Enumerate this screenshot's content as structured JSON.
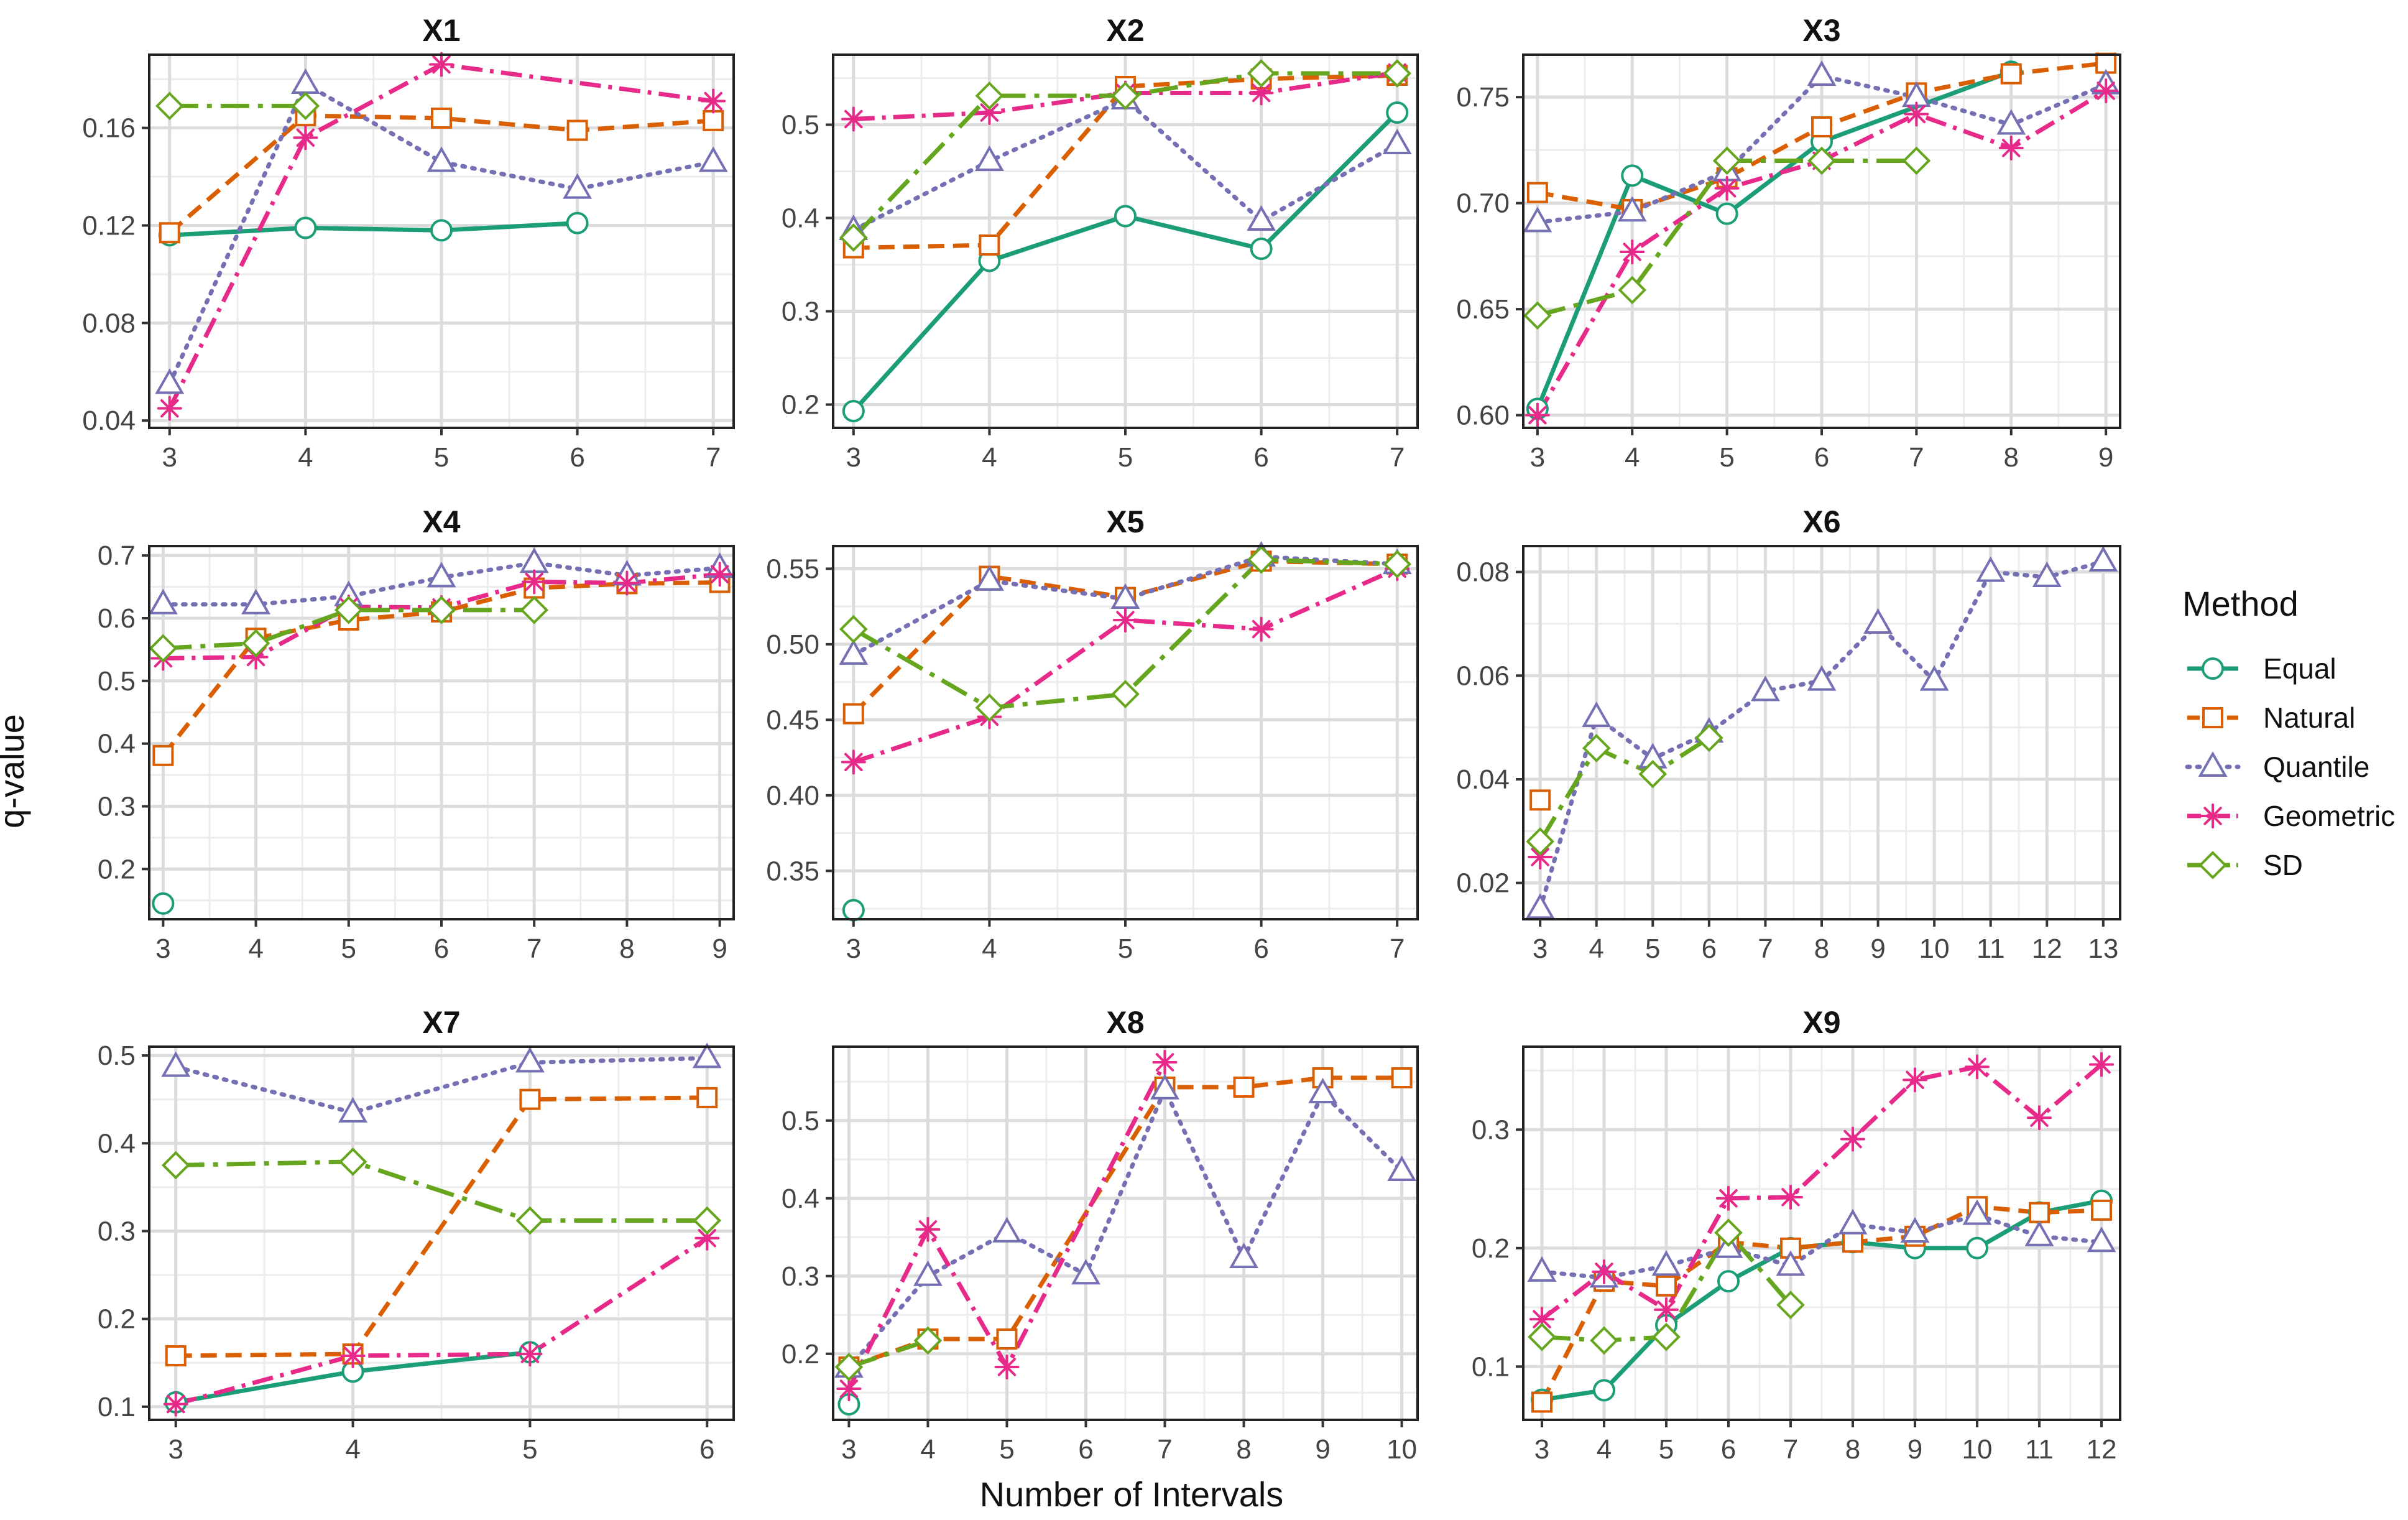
{
  "chart_data": {
    "type": "line",
    "xlabel": "Number of Intervals",
    "ylabel": "q-value",
    "legend": {
      "title": "Method",
      "placement": "right",
      "entries": [
        {
          "name": "Equal",
          "color": "#1b9e77",
          "dash": "solid",
          "marker": "circle"
        },
        {
          "name": "Natural",
          "color": "#d95f02",
          "dash": "dashed",
          "marker": "square"
        },
        {
          "name": "Quantile",
          "color": "#7570b3",
          "dash": "dotted",
          "marker": "triangle"
        },
        {
          "name": "Geometric",
          "color": "#e7298a",
          "dash": "dashdot",
          "marker": "star"
        },
        {
          "name": "SD",
          "color": "#66a61e",
          "dash": "longdashdot",
          "marker": "diamond"
        }
      ]
    },
    "panels": [
      {
        "title": "X1",
        "xlim": [
          2.85,
          7.15
        ],
        "ylim": [
          0.037,
          0.19
        ],
        "xticks": [
          3,
          4,
          5,
          6,
          7
        ],
        "yticks": [
          0.04,
          0.08,
          0.12,
          0.16
        ],
        "ytick_labels": [
          "0.04",
          "0.08",
          "0.12",
          "0.16"
        ],
        "series": [
          {
            "name": "Equal",
            "x": [
              3,
              4,
              5,
              6
            ],
            "y": [
              0.116,
              0.119,
              0.118,
              0.121
            ]
          },
          {
            "name": "Natural",
            "x": [
              3,
              4,
              5,
              6,
              7
            ],
            "y": [
              0.117,
              0.165,
              0.164,
              0.159,
              0.163
            ]
          },
          {
            "name": "Quantile",
            "x": [
              3,
              4,
              5,
              6,
              7
            ],
            "y": [
              0.055,
              0.178,
              0.146,
              0.135,
              0.146
            ]
          },
          {
            "name": "Geometric",
            "x": [
              3,
              4,
              5,
              7
            ],
            "y": [
              0.045,
              0.156,
              0.186,
              0.171
            ]
          },
          {
            "name": "SD",
            "x": [
              3,
              4
            ],
            "y": [
              0.169,
              0.169
            ]
          }
        ]
      },
      {
        "title": "X2",
        "xlim": [
          2.85,
          7.15
        ],
        "ylim": [
          0.175,
          0.575
        ],
        "xticks": [
          3,
          4,
          5,
          6,
          7
        ],
        "yticks": [
          0.2,
          0.3,
          0.4,
          0.5
        ],
        "ytick_labels": [
          "0.2",
          "0.3",
          "0.4",
          "0.5"
        ],
        "series": [
          {
            "name": "Equal",
            "x": [
              3,
              4,
              5,
              6,
              7
            ],
            "y": [
              0.193,
              0.354,
              0.402,
              0.367,
              0.513
            ]
          },
          {
            "name": "Natural",
            "x": [
              3,
              4,
              5,
              6,
              7
            ],
            "y": [
              0.368,
              0.371,
              0.541,
              0.549,
              0.553
            ]
          },
          {
            "name": "Quantile",
            "x": [
              3,
              4,
              5,
              6,
              7
            ],
            "y": [
              0.387,
              0.461,
              0.527,
              0.397,
              0.479
            ]
          },
          {
            "name": "Geometric",
            "x": [
              3,
              4,
              5,
              6,
              7
            ],
            "y": [
              0.506,
              0.513,
              0.534,
              0.534,
              0.556
            ]
          },
          {
            "name": "SD",
            "x": [
              3,
              4,
              5,
              6,
              7
            ],
            "y": [
              0.379,
              0.531,
              0.531,
              0.555,
              0.555
            ]
          }
        ]
      },
      {
        "title": "X3",
        "xlim": [
          2.85,
          9.15
        ],
        "ylim": [
          0.594,
          0.77
        ],
        "xticks": [
          3,
          4,
          5,
          6,
          7,
          8,
          9
        ],
        "yticks": [
          0.6,
          0.65,
          0.7,
          0.75
        ],
        "ytick_labels": [
          "0.60",
          "0.65",
          "0.70",
          "0.75"
        ],
        "series": [
          {
            "name": "Equal",
            "x": [
              3,
              4,
              5,
              6,
              8
            ],
            "y": [
              0.603,
              0.713,
              0.695,
              0.729,
              0.762
            ]
          },
          {
            "name": "Natural",
            "x": [
              3,
              4,
              5,
              6,
              7,
              8,
              9
            ],
            "y": [
              0.705,
              0.697,
              0.712,
              0.736,
              0.752,
              0.761,
              0.766
            ]
          },
          {
            "name": "Quantile",
            "x": [
              3,
              4,
              5,
              6,
              7,
              8,
              9
            ],
            "y": [
              0.691,
              0.696,
              0.715,
              0.76,
              0.75,
              0.737,
              0.756
            ]
          },
          {
            "name": "Geometric",
            "x": [
              3,
              4,
              5,
              6,
              7,
              8,
              9
            ],
            "y": [
              0.6,
              0.677,
              0.707,
              0.72,
              0.742,
              0.726,
              0.753
            ]
          },
          {
            "name": "SD",
            "x": [
              3,
              4,
              5,
              6,
              7
            ],
            "y": [
              0.647,
              0.659,
              0.72,
              0.72,
              0.72
            ]
          }
        ]
      },
      {
        "title": "X4",
        "xlim": [
          2.85,
          9.15
        ],
        "ylim": [
          0.12,
          0.715
        ],
        "xticks": [
          3,
          4,
          5,
          6,
          7,
          8,
          9
        ],
        "yticks": [
          0.2,
          0.3,
          0.4,
          0.5,
          0.6,
          0.7
        ],
        "ytick_labels": [
          "0.2",
          "0.3",
          "0.4",
          "0.5",
          "0.6",
          "0.7"
        ],
        "series": [
          {
            "name": "Equal",
            "x": [
              3
            ],
            "y": [
              0.145
            ]
          },
          {
            "name": "Natural",
            "x": [
              3,
              4,
              5,
              6,
              7,
              8,
              9
            ],
            "y": [
              0.381,
              0.568,
              0.597,
              0.61,
              0.648,
              0.655,
              0.657
            ]
          },
          {
            "name": "Quantile",
            "x": [
              3,
              4,
              5,
              6,
              7,
              8,
              9
            ],
            "y": [
              0.622,
              0.622,
              0.635,
              0.665,
              0.688,
              0.668,
              0.68
            ]
          },
          {
            "name": "Geometric",
            "x": [
              3,
              4,
              5,
              6,
              7,
              8,
              9
            ],
            "y": [
              0.536,
              0.538,
              0.618,
              0.617,
              0.658,
              0.656,
              0.67
            ]
          },
          {
            "name": "SD",
            "x": [
              3,
              4,
              5,
              6,
              7
            ],
            "y": [
              0.552,
              0.56,
              0.613,
              0.613,
              0.613
            ]
          }
        ]
      },
      {
        "title": "X5",
        "xlim": [
          2.85,
          7.15
        ],
        "ylim": [
          0.318,
          0.565
        ],
        "xticks": [
          3,
          4,
          5,
          6,
          7
        ],
        "yticks": [
          0.35,
          0.4,
          0.45,
          0.5,
          0.55
        ],
        "ytick_labels": [
          "0.35",
          "0.40",
          "0.45",
          "0.50",
          "0.55"
        ],
        "series": [
          {
            "name": "Equal",
            "x": [
              3
            ],
            "y": [
              0.324
            ]
          },
          {
            "name": "Natural",
            "x": [
              3,
              4,
              5,
              6,
              7
            ],
            "y": [
              0.454,
              0.545,
              0.531,
              0.555,
              0.553
            ]
          },
          {
            "name": "Quantile",
            "x": [
              3,
              4,
              5,
              6,
              7
            ],
            "y": [
              0.493,
              0.542,
              0.53,
              0.558,
              0.553
            ]
          },
          {
            "name": "Geometric",
            "x": [
              3,
              4,
              5,
              6,
              7
            ],
            "y": [
              0.422,
              0.452,
              0.516,
              0.51,
              0.55
            ]
          },
          {
            "name": "SD",
            "x": [
              3,
              4,
              5,
              6,
              7
            ],
            "y": [
              0.51,
              0.458,
              0.467,
              0.556,
              0.553
            ]
          }
        ]
      },
      {
        "title": "X6",
        "xlim": [
          2.7,
          13.3
        ],
        "ylim": [
          0.013,
          0.085
        ],
        "xticks": [
          3,
          4,
          5,
          6,
          7,
          8,
          9,
          10,
          11,
          12,
          13
        ],
        "yticks": [
          0.02,
          0.04,
          0.06,
          0.08
        ],
        "ytick_labels": [
          "0.02",
          "0.04",
          "0.06",
          "0.08"
        ],
        "series": [
          {
            "name": "Natural",
            "x": [
              3
            ],
            "y": [
              0.036
            ]
          },
          {
            "name": "Quantile",
            "x": [
              3,
              4,
              5,
              6,
              7,
              8,
              9,
              10,
              11,
              12,
              13
            ],
            "y": [
              0.015,
              0.052,
              0.044,
              0.049,
              0.057,
              0.059,
              0.07,
              0.059,
              0.08,
              0.079,
              0.082
            ]
          },
          {
            "name": "Geometric",
            "x": [
              3
            ],
            "y": [
              0.025
            ]
          },
          {
            "name": "SD",
            "x": [
              3,
              4,
              5,
              6
            ],
            "y": [
              0.028,
              0.046,
              0.041,
              0.048
            ]
          }
        ]
      },
      {
        "title": "X7",
        "xlim": [
          2.85,
          6.15
        ],
        "ylim": [
          0.085,
          0.51
        ],
        "xticks": [
          3,
          4,
          5,
          6
        ],
        "yticks": [
          0.1,
          0.2,
          0.3,
          0.4,
          0.5
        ],
        "ytick_labels": [
          "0.1",
          "0.2",
          "0.3",
          "0.4",
          "0.5"
        ],
        "series": [
          {
            "name": "Equal",
            "x": [
              3,
              4,
              5
            ],
            "y": [
              0.105,
              0.14,
              0.162
            ]
          },
          {
            "name": "Natural",
            "x": [
              3,
              4,
              5,
              6
            ],
            "y": [
              0.158,
              0.16,
              0.45,
              0.452
            ]
          },
          {
            "name": "Quantile",
            "x": [
              3,
              4,
              5,
              6
            ],
            "y": [
              0.487,
              0.435,
              0.492,
              0.497
            ]
          },
          {
            "name": "Geometric",
            "x": [
              3,
              4,
              5,
              6
            ],
            "y": [
              0.103,
              0.158,
              0.16,
              0.292
            ]
          },
          {
            "name": "SD",
            "x": [
              3,
              4,
              5,
              6
            ],
            "y": [
              0.375,
              0.379,
              0.312,
              0.312
            ]
          }
        ]
      },
      {
        "title": "X8",
        "xlim": [
          2.8,
          10.2
        ],
        "ylim": [
          0.115,
          0.595
        ],
        "xticks": [
          3,
          4,
          5,
          6,
          7,
          8,
          9,
          10
        ],
        "yticks": [
          0.2,
          0.3,
          0.4,
          0.5
        ],
        "ytick_labels": [
          "0.2",
          "0.3",
          "0.4",
          "0.5"
        ],
        "series": [
          {
            "name": "Equal",
            "x": [
              3
            ],
            "y": [
              0.135
            ]
          },
          {
            "name": "Natural",
            "x": [
              3,
              4,
              5,
              7,
              8,
              9,
              10
            ],
            "y": [
              0.183,
              0.219,
              0.219,
              0.543,
              0.543,
              0.555,
              0.555
            ]
          },
          {
            "name": "Quantile",
            "x": [
              3,
              4,
              5,
              6,
              7,
              8,
              9,
              10
            ],
            "y": [
              0.182,
              0.3,
              0.356,
              0.302,
              0.54,
              0.323,
              0.535,
              0.435
            ]
          },
          {
            "name": "Geometric",
            "x": [
              3,
              4,
              5,
              7
            ],
            "y": [
              0.155,
              0.36,
              0.183,
              0.575
            ]
          },
          {
            "name": "SD",
            "x": [
              3,
              4
            ],
            "y": [
              0.183,
              0.217
            ]
          }
        ]
      },
      {
        "title": "X9",
        "xlim": [
          2.7,
          12.3
        ],
        "ylim": [
          0.055,
          0.37
        ],
        "xticks": [
          3,
          4,
          5,
          6,
          7,
          8,
          9,
          10,
          11,
          12
        ],
        "yticks": [
          0.1,
          0.2,
          0.3
        ],
        "ytick_labels": [
          "0.1",
          "0.2",
          "0.3"
        ],
        "series": [
          {
            "name": "Equal",
            "x": [
              3,
              4,
              5,
              6,
              7,
              8,
              9,
              10,
              11,
              12
            ],
            "y": [
              0.072,
              0.08,
              0.135,
              0.172,
              0.2,
              0.205,
              0.2,
              0.2,
              0.23,
              0.24
            ]
          },
          {
            "name": "Natural",
            "x": [
              3,
              4,
              5,
              6,
              7,
              8,
              9,
              10,
              11,
              12
            ],
            "y": [
              0.07,
              0.172,
              0.168,
              0.205,
              0.2,
              0.205,
              0.21,
              0.235,
              0.23,
              0.232
            ]
          },
          {
            "name": "Quantile",
            "x": [
              3,
              4,
              5,
              6,
              7,
              8,
              9,
              10,
              11,
              12
            ],
            "y": [
              0.18,
              0.175,
              0.185,
              0.2,
              0.185,
              0.22,
              0.213,
              0.228,
              0.21,
              0.205
            ]
          },
          {
            "name": "Geometric",
            "x": [
              3,
              4,
              5,
              6,
              7,
              8,
              9,
              10,
              11,
              12
            ],
            "y": [
              0.14,
              0.18,
              0.148,
              0.242,
              0.243,
              0.292,
              0.342,
              0.353,
              0.31,
              0.355
            ]
          },
          {
            "name": "SD",
            "x": [
              3,
              4,
              5,
              6,
              7
            ],
            "y": [
              0.125,
              0.122,
              0.125,
              0.213,
              0.152
            ]
          }
        ]
      }
    ]
  }
}
